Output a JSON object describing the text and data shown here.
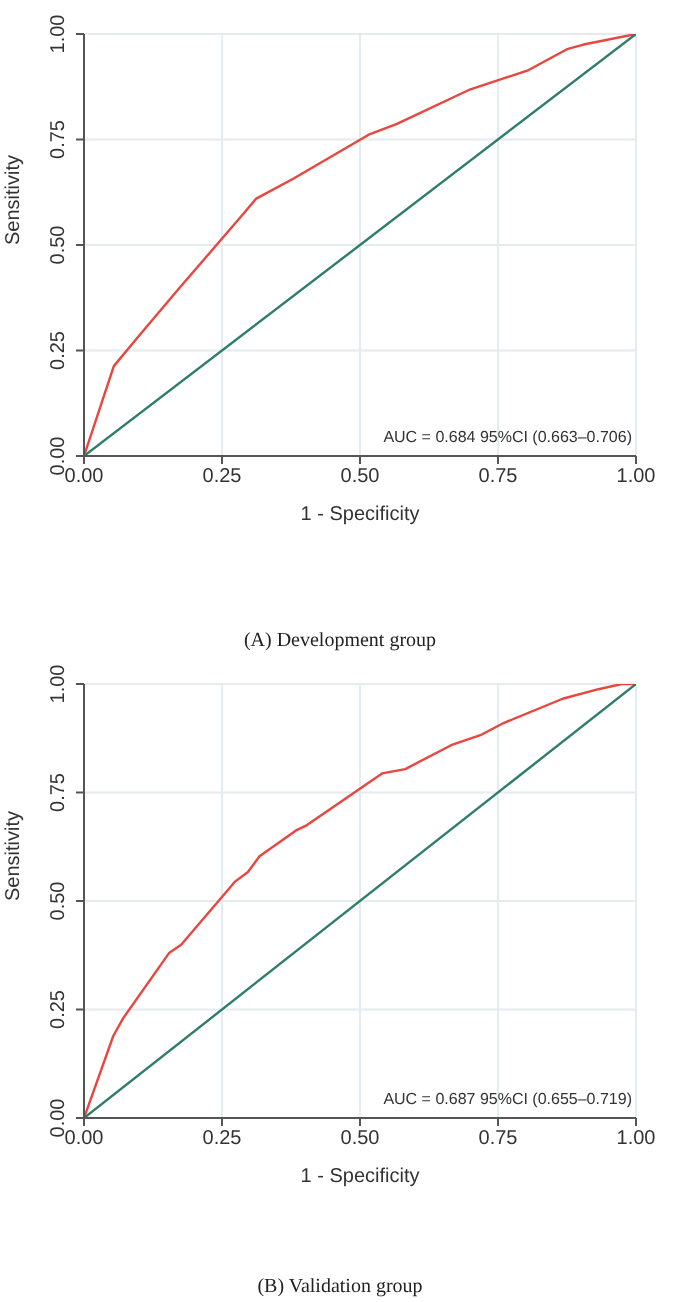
{
  "chart_data": [
    {
      "type": "line",
      "title": "(A) Development group",
      "xlabel": "1 - Specificity",
      "ylabel": "Sensitivity",
      "annotations": [
        "AUC = 0.684  95%CI (0.663–0.706)"
      ],
      "xlim": [
        0,
        1
      ],
      "ylim": [
        0,
        1
      ],
      "xticks": [
        {
          "value": 0,
          "label": "0.00"
        },
        {
          "value": 0.25,
          "label": "0.25"
        },
        {
          "value": 0.5,
          "label": "0.50"
        },
        {
          "value": 0.75,
          "label": "0.75"
        },
        {
          "value": 1,
          "label": "1.00"
        }
      ],
      "yticks": [
        {
          "value": 0,
          "label": "0.00"
        },
        {
          "value": 0.25,
          "label": "0.25"
        },
        {
          "value": 0.5,
          "label": "0.50"
        },
        {
          "value": 0.75,
          "label": "0.75"
        },
        {
          "value": 1,
          "label": "1.00"
        }
      ],
      "grid": true,
      "marker": "none",
      "line_style": "solid",
      "series": [
        {
          "color": "#e8463f",
          "x": [
            0,
            0.054,
            0.094,
            0.167,
            0.288,
            0.312,
            0.379,
            0.518,
            0.567,
            0.7,
            0.803,
            0.875,
            0.905,
            1
          ],
          "values": [
            0,
            0.213,
            0.276,
            0.389,
            0.573,
            0.61,
            0.657,
            0.763,
            0.787,
            0.869,
            0.913,
            0.964,
            0.975,
            1
          ]
        },
        {
          "color": "#2e7d6b",
          "x": [
            0,
            1
          ],
          "values": [
            0,
            1
          ]
        }
      ]
    },
    {
      "type": "line",
      "title": "(B) Validation group",
      "xlabel": "1 - Specificity",
      "ylabel": "Sensitivity",
      "annotations": [
        "AUC = 0.687  95%CI (0.655–0.719)"
      ],
      "xlim": [
        0,
        1
      ],
      "ylim": [
        0,
        1
      ],
      "xticks": [
        {
          "value": 0,
          "label": "0.00"
        },
        {
          "value": 0.25,
          "label": "0.25"
        },
        {
          "value": 0.5,
          "label": "0.50"
        },
        {
          "value": 0.75,
          "label": "0.75"
        },
        {
          "value": 1,
          "label": "1.00"
        }
      ],
      "yticks": [
        {
          "value": 0,
          "label": "0.00"
        },
        {
          "value": 0.25,
          "label": "0.25"
        },
        {
          "value": 0.5,
          "label": "0.50"
        },
        {
          "value": 0.75,
          "label": "0.75"
        },
        {
          "value": 1,
          "label": "1.00"
        }
      ],
      "grid": true,
      "marker": "none",
      "line_style": "solid",
      "series": [
        {
          "color": "#e8463f",
          "x": [
            0,
            0.053,
            0.071,
            0.154,
            0.176,
            0.273,
            0.297,
            0.318,
            0.386,
            0.404,
            0.54,
            0.582,
            0.665,
            0.718,
            0.76,
            0.867,
            0.932,
            0.974,
            1
          ],
          "values": [
            0,
            0.189,
            0.23,
            0.38,
            0.399,
            0.544,
            0.567,
            0.603,
            0.664,
            0.675,
            0.794,
            0.804,
            0.859,
            0.882,
            0.91,
            0.966,
            0.988,
            1,
            1
          ]
        },
        {
          "color": "#2e7d6b",
          "x": [
            0,
            1
          ],
          "values": [
            0,
            1
          ]
        }
      ]
    }
  ]
}
